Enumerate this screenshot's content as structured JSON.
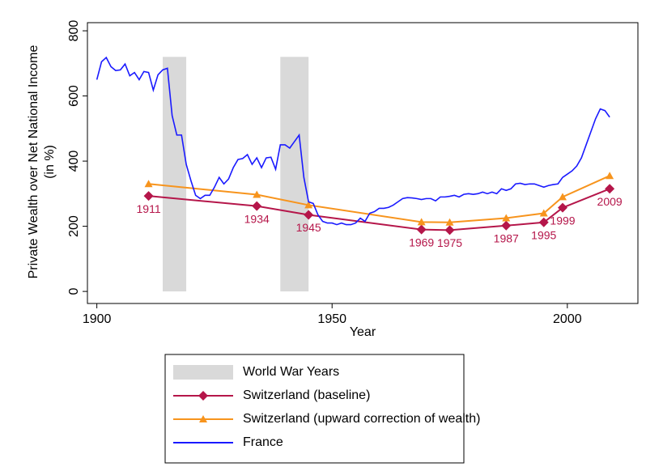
{
  "chart_data": {
    "type": "line",
    "xlabel": "Year",
    "ylabel": [
      "Private Wealth over Net National Income",
      "(in %)"
    ],
    "xlim": [
      1898,
      2015
    ],
    "ylim": [
      -37,
      825
    ],
    "xticks": [
      1900,
      1950,
      2000
    ],
    "yticks": [
      0,
      200,
      400,
      600,
      800
    ],
    "shaded": {
      "name": "World War Years",
      "color": "#d9d9d9",
      "periods": [
        [
          1914,
          1919
        ],
        [
          1939,
          1945
        ]
      ],
      "values": [
        720,
        720
      ]
    },
    "series": [
      {
        "name": "Switzerland (baseline)",
        "color": "#b5164a",
        "marker": "diamond",
        "x": [
          1911,
          1934,
          1945,
          1969,
          1975,
          1987,
          1995,
          1999,
          2009
        ],
        "values": [
          293,
          262,
          235,
          190,
          188,
          202,
          212,
          257,
          315
        ]
      },
      {
        "name": "Switzerland (upward correction of wealth)",
        "color": "#f7941d",
        "marker": "triangle",
        "x": [
          1911,
          1934,
          1945,
          1969,
          1975,
          1987,
          1995,
          1999,
          2009
        ],
        "values": [
          330,
          297,
          265,
          213,
          212,
          225,
          240,
          290,
          355
        ]
      },
      {
        "name": "France",
        "color": "#1a1aff",
        "marker": "none",
        "x": [
          1900,
          1901,
          1902,
          1903,
          1904,
          1905,
          1906,
          1907,
          1908,
          1909,
          1910,
          1911,
          1912,
          1913,
          1914,
          1915,
          1916,
          1917,
          1918,
          1919,
          1920,
          1921,
          1922,
          1923,
          1924,
          1925,
          1926,
          1927,
          1928,
          1929,
          1930,
          1931,
          1932,
          1933,
          1934,
          1935,
          1936,
          1937,
          1938,
          1939,
          1940,
          1941,
          1942,
          1943,
          1944,
          1945,
          1946,
          1947,
          1948,
          1949,
          1950,
          1951,
          1952,
          1953,
          1954,
          1955,
          1956,
          1957,
          1958,
          1959,
          1960,
          1961,
          1962,
          1963,
          1964,
          1965,
          1966,
          1967,
          1968,
          1969,
          1970,
          1971,
          1972,
          1973,
          1974,
          1975,
          1976,
          1977,
          1978,
          1979,
          1980,
          1981,
          1982,
          1983,
          1984,
          1985,
          1986,
          1987,
          1988,
          1989,
          1990,
          1991,
          1992,
          1993,
          1994,
          1995,
          1996,
          1997,
          1998,
          1999,
          2000,
          2001,
          2002,
          2003,
          2004,
          2005,
          2006,
          2007,
          2008,
          2009
        ],
        "values": [
          650,
          705,
          718,
          690,
          678,
          680,
          698,
          662,
          672,
          650,
          675,
          672,
          618,
          665,
          680,
          685,
          540,
          480,
          480,
          390,
          340,
          295,
          285,
          295,
          295,
          320,
          350,
          330,
          345,
          380,
          405,
          408,
          420,
          390,
          410,
          380,
          410,
          412,
          375,
          450,
          450,
          440,
          460,
          480,
          350,
          275,
          270,
          235,
          215,
          210,
          210,
          205,
          210,
          205,
          205,
          210,
          225,
          215,
          240,
          245,
          255,
          255,
          258,
          265,
          275,
          285,
          288,
          287,
          285,
          282,
          285,
          285,
          278,
          290,
          290,
          292,
          295,
          290,
          298,
          300,
          298,
          300,
          305,
          300,
          305,
          300,
          315,
          310,
          315,
          330,
          332,
          328,
          330,
          330,
          325,
          320,
          325,
          328,
          330,
          350,
          360,
          370,
          385,
          410,
          450,
          490,
          530,
          560,
          555,
          535
        ]
      }
    ],
    "point_labels_series": 0
  }
}
